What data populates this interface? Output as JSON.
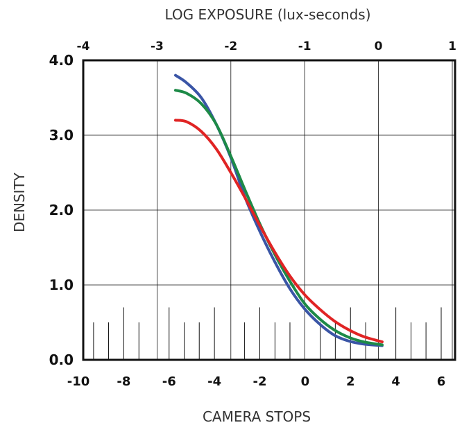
{
  "chart_data": {
    "type": "line",
    "title": "",
    "top_axis": {
      "label": "LOG EXPOSURE (lux-seconds)",
      "range": [
        -4,
        1
      ],
      "ticks": [
        "-4",
        "-3",
        "-2",
        "-1",
        "0",
        "1"
      ]
    },
    "bottom_axis": {
      "label": "CAMERA STOPS",
      "range": [
        -10,
        6
      ],
      "ticks": [
        "-10",
        "-8",
        "-6",
        "-4",
        "-2",
        "0",
        "2",
        "4",
        "6"
      ]
    },
    "y_axis": {
      "label": "DENSITY",
      "range": [
        0,
        4
      ],
      "ticks": [
        "0.0",
        "1.0",
        "2.0",
        "3.0",
        "4.0"
      ]
    },
    "grid": true,
    "series": [
      {
        "color": "#3a55a6",
        "x": [
          -2.75,
          -2.6,
          -2.4,
          -2.2,
          -2.0,
          -1.8,
          -1.6,
          -1.4,
          -1.2,
          -1.0,
          -0.8,
          -0.6,
          -0.4,
          -0.2,
          0.05
        ],
        "y": [
          3.8,
          3.7,
          3.5,
          3.15,
          2.7,
          2.15,
          1.7,
          1.3,
          0.95,
          0.68,
          0.48,
          0.33,
          0.25,
          0.21,
          0.19
        ]
      },
      {
        "color": "#1d8a47",
        "x": [
          -2.75,
          -2.6,
          -2.4,
          -2.2,
          -2.0,
          -1.8,
          -1.6,
          -1.4,
          -1.2,
          -1.0,
          -0.8,
          -0.6,
          -0.4,
          -0.2,
          0.05
        ],
        "y": [
          3.6,
          3.56,
          3.42,
          3.15,
          2.72,
          2.25,
          1.8,
          1.4,
          1.05,
          0.75,
          0.55,
          0.4,
          0.3,
          0.24,
          0.2
        ]
      },
      {
        "color": "#e02424",
        "x": [
          -2.75,
          -2.6,
          -2.4,
          -2.2,
          -2.0,
          -1.8,
          -1.6,
          -1.4,
          -1.2,
          -1.0,
          -0.8,
          -0.6,
          -0.4,
          -0.2,
          0.05
        ],
        "y": [
          3.2,
          3.18,
          3.05,
          2.82,
          2.5,
          2.15,
          1.78,
          1.43,
          1.12,
          0.87,
          0.68,
          0.52,
          0.4,
          0.31,
          0.24
        ]
      }
    ],
    "stop_marks": [
      {
        "stop": -9.33,
        "level": 0.5
      },
      {
        "stop": -8.67,
        "level": 0.5
      },
      {
        "stop": -8.0,
        "level": 0.7
      },
      {
        "stop": -7.33,
        "level": 0.5
      },
      {
        "stop": -6.0,
        "level": 0.7
      },
      {
        "stop": -5.33,
        "level": 0.5
      },
      {
        "stop": -4.67,
        "level": 0.5
      },
      {
        "stop": -4.0,
        "level": 0.7
      },
      {
        "stop": -2.67,
        "level": 0.5
      },
      {
        "stop": -2.0,
        "level": 0.7
      },
      {
        "stop": -1.33,
        "level": 0.5
      },
      {
        "stop": -0.67,
        "level": 0.5
      },
      {
        "stop": 0.67,
        "level": 0.5
      },
      {
        "stop": 1.33,
        "level": 0.5
      },
      {
        "stop": 2.0,
        "level": 0.7
      },
      {
        "stop": 2.67,
        "level": 0.5
      },
      {
        "stop": 4.0,
        "level": 0.7
      },
      {
        "stop": 4.67,
        "level": 0.5
      },
      {
        "stop": 5.33,
        "level": 0.5
      },
      {
        "stop": 6.0,
        "level": 0.7
      }
    ]
  }
}
